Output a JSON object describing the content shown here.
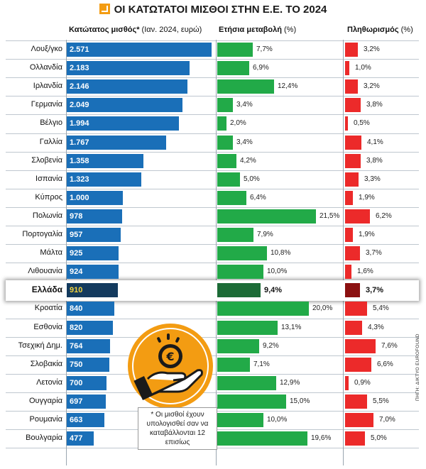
{
  "title": "ΟΙ ΚΑΤΩΤΑΤΟΙ ΜΙΣΘΟΙ ΣΤΗΝ Ε.Ε. ΤΟ 2024",
  "headers": {
    "wage_bold": "Κατώτατος μισθός*",
    "wage_rest": " (Ιαν. 2024, ευρώ)",
    "change_bold": "Ετήσια μεταβολή",
    "change_rest": " (%)",
    "inflation_bold": "Πληθωρισμός",
    "inflation_rest": " (%)"
  },
  "note": "* Οι μισθοί έχουν υπολογισθεί σαν να καταβάλλονται 12 επισίως",
  "source": "ΠΗΓΗ: ΔΙΚΤΥΟ EUROFOUND",
  "colors": {
    "wage": "#1a6fb8",
    "change": "#22aa48",
    "inflation": "#ec2a2a",
    "accent": "#f39c12",
    "highlight_text": "#f2d33b"
  },
  "icon": "hand-holding-euro-coin-icon",
  "chart_data": {
    "type": "bar",
    "categories": [
      "Λουξ/γκο",
      "Ολλανδία",
      "Ιρλανδία",
      "Γερμανία",
      "Βέλγιο",
      "Γαλλία",
      "Σλοβενία",
      "Ισπανία",
      "Κύπρος",
      "Πολωνία",
      "Πορτογαλία",
      "Μάλτα",
      "Λιθουανία",
      "Ελλάδα",
      "Κροατία",
      "Εσθονία",
      "Τσεχική Δημ.",
      "Σλοβακία",
      "Λετονία",
      "Ουγγαρία",
      "Ρουμανία",
      "Βουλγαρία"
    ],
    "highlight": "Ελλάδα",
    "series": [
      {
        "name": "Κατώτατος μισθός* (Ιαν. 2024, ευρώ)",
        "values": [
          2571,
          2183,
          2146,
          2049,
          1994,
          1767,
          1358,
          1323,
          1000,
          978,
          957,
          925,
          924,
          910,
          840,
          820,
          764,
          750,
          700,
          697,
          663,
          477
        ],
        "labels": [
          "2.571",
          "2.183",
          "2.146",
          "2.049",
          "1.994",
          "1.767",
          "1.358",
          "1.323",
          "1.000",
          "978",
          "957",
          "925",
          "924",
          "910",
          "840",
          "820",
          "764",
          "750",
          "700",
          "697",
          "663",
          "477"
        ]
      },
      {
        "name": "Ετήσια μεταβολή (%)",
        "values": [
          7.7,
          6.9,
          12.4,
          3.4,
          2.0,
          3.4,
          4.2,
          5.0,
          6.4,
          21.5,
          7.9,
          10.8,
          10.0,
          9.4,
          20.0,
          13.1,
          9.2,
          7.1,
          12.9,
          15.0,
          10.0,
          19.6
        ],
        "labels": [
          "7,7%",
          "6,9%",
          "12,4%",
          "3,4%",
          "2,0%",
          "3,4%",
          "4,2%",
          "5,0%",
          "6,4%",
          "21,5%",
          "7,9%",
          "10,8%",
          "10,0%",
          "9,4%",
          "20,0%",
          "13,1%",
          "9,2%",
          "7,1%",
          "12,9%",
          "15,0%",
          "10,0%",
          "19,6%"
        ]
      },
      {
        "name": "Πληθωρισμός (%)",
        "values": [
          3.2,
          1.0,
          3.2,
          3.8,
          0.5,
          4.1,
          3.8,
          3.3,
          1.9,
          6.2,
          1.9,
          3.7,
          1.6,
          3.7,
          5.4,
          4.3,
          7.6,
          6.6,
          0.9,
          5.5,
          7.0,
          5.0
        ],
        "labels": [
          "3,2%",
          "1,0%",
          "3,2%",
          "3,8%",
          "0,5%",
          "4,1%",
          "3,8%",
          "3,3%",
          "1,9%",
          "6,2%",
          "1,9%",
          "3,7%",
          "1,6%",
          "3,7%",
          "5,4%",
          "4,3%",
          "7,6%",
          "6,6%",
          "0,9%",
          "5,5%",
          "7,0%",
          "5,0%"
        ]
      }
    ]
  }
}
